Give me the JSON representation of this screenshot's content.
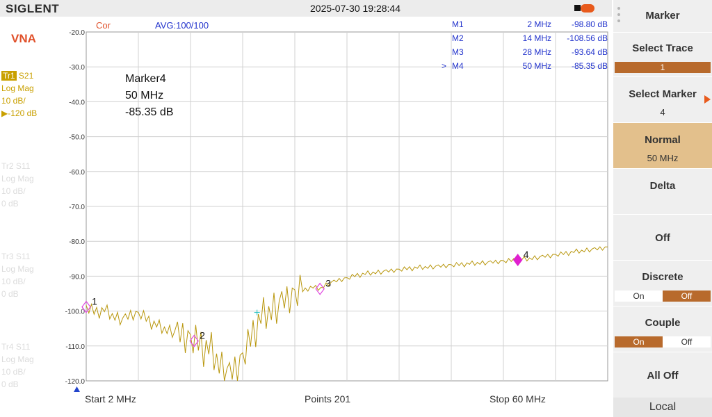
{
  "header": {
    "logo": "SIGLENT",
    "datetime": "2025-07-30 19:28:44"
  },
  "left": {
    "mode": "VNA",
    "traces": [
      {
        "id": "Tr1",
        "param": "S21",
        "format": "Log Mag",
        "scale": "10 dB/",
        "ref": "▶-120 dB",
        "active": true
      },
      {
        "id": "Tr2",
        "param": "S11",
        "format": "Log Mag",
        "scale": "10 dB/",
        "ref": "0 dB",
        "active": false
      },
      {
        "id": "Tr3",
        "param": "S11",
        "format": "Log Mag",
        "scale": "10 dB/",
        "ref": "0 dB",
        "active": false
      },
      {
        "id": "Tr4",
        "param": "S11",
        "format": "Log Mag",
        "scale": "10 dB/",
        "ref": "0 dB",
        "active": false
      }
    ]
  },
  "plot": {
    "cor": "Cor",
    "avg": "AVG:100/100",
    "marker_readout": {
      "name": "Marker4",
      "freq": "50 MHz",
      "value": "-85.35 dB"
    },
    "marker_table": [
      {
        "pointer": "",
        "name": "M1",
        "freq": "2 MHz",
        "value": "-98.80 dB"
      },
      {
        "pointer": "",
        "name": "M2",
        "freq": "14 MHz",
        "value": "-108.56 dB"
      },
      {
        "pointer": "",
        "name": "M3",
        "freq": "28 MHz",
        "value": "-93.64 dB"
      },
      {
        "pointer": ">",
        "name": "M4",
        "freq": "50 MHz",
        "value": "-85.35 dB"
      }
    ],
    "start_label": "Start  2 MHz",
    "points_label": "Points   201",
    "stop_label": "Stop  60 MHz"
  },
  "menu": {
    "title": "Marker",
    "select_trace": {
      "label": "Select Trace",
      "value": "1"
    },
    "select_marker": {
      "label": "Select Marker",
      "value": "4"
    },
    "normal": {
      "label": "Normal",
      "value": "50 MHz"
    },
    "delta": {
      "label": "Delta"
    },
    "off": {
      "label": "Off"
    },
    "discrete": {
      "label": "Discrete",
      "on": "On",
      "off": "Off",
      "state": "off"
    },
    "couple": {
      "label": "Couple",
      "on": "On",
      "off": "Off",
      "state": "on"
    },
    "all_off": {
      "label": "All Off"
    },
    "local": "Local"
  },
  "colors": {
    "trace": "#b8960c",
    "marker": "#e040e0",
    "marker_active": "#e020d0",
    "grid": "#d0d0d0",
    "table_text": "#2233cc",
    "axis_text": "#333333",
    "cor": "#e0502a",
    "avg": "#2233cc"
  },
  "chart_data": {
    "type": "line",
    "x_unit": "MHz",
    "y_unit": "dB",
    "xlim": [
      2,
      60
    ],
    "ylim": [
      -120,
      -20
    ],
    "yticks": [
      "-20.0",
      "-30.0",
      "-40.0",
      "-50.0",
      "-60.0",
      "-70.0",
      "-80.0",
      "-90.0",
      "-100.0",
      "-110.0",
      "-120.0"
    ],
    "grid": true,
    "series": [
      {
        "x": [
          2,
          3,
          4,
          5,
          6,
          7,
          8,
          9,
          10,
          11,
          12,
          13,
          14,
          15,
          16,
          17,
          18,
          19,
          20,
          21,
          22,
          23,
          24,
          25,
          26,
          27,
          28,
          29,
          30,
          31,
          32,
          33,
          34,
          35,
          36,
          37,
          38,
          39,
          40,
          41,
          42,
          43,
          44,
          45,
          46,
          47,
          48,
          49,
          50,
          51,
          52,
          53,
          54,
          55,
          56,
          57,
          58,
          59,
          60
        ],
        "y": [
          -98.8,
          -100.5,
          -99.8,
          -101.5,
          -102.4,
          -101,
          -100.8,
          -103,
          -104.5,
          -105.5,
          -106,
          -107.5,
          -108.6,
          -110.5,
          -112,
          -116,
          -118,
          -115.5,
          -110,
          -104,
          -101,
          -99,
          -97,
          -95.5,
          -94.3,
          -93.2,
          -93.6,
          -92,
          -91.2,
          -90.6,
          -89.8,
          -89.4,
          -89,
          -88.7,
          -88.4,
          -88.1,
          -87.8,
          -87.6,
          -87.4,
          -87.2,
          -87,
          -86.8,
          -86.6,
          -86.4,
          -86.2,
          -86,
          -85.8,
          -85.6,
          -85.35,
          -85.1,
          -84.7,
          -84.3,
          -84,
          -83.6,
          -83.2,
          -82.8,
          -82.4,
          -82.1,
          -81.8
        ]
      }
    ],
    "markers": [
      {
        "label": "1",
        "x": 2,
        "y": -98.8
      },
      {
        "label": "2",
        "x": 14,
        "y": -108.56
      },
      {
        "label": "3",
        "x": 28,
        "y": -93.64
      },
      {
        "label": "4",
        "x": 50,
        "y": -85.35,
        "active": true
      }
    ],
    "cursor_point": {
      "x": 21,
      "y": -100.4
    }
  }
}
